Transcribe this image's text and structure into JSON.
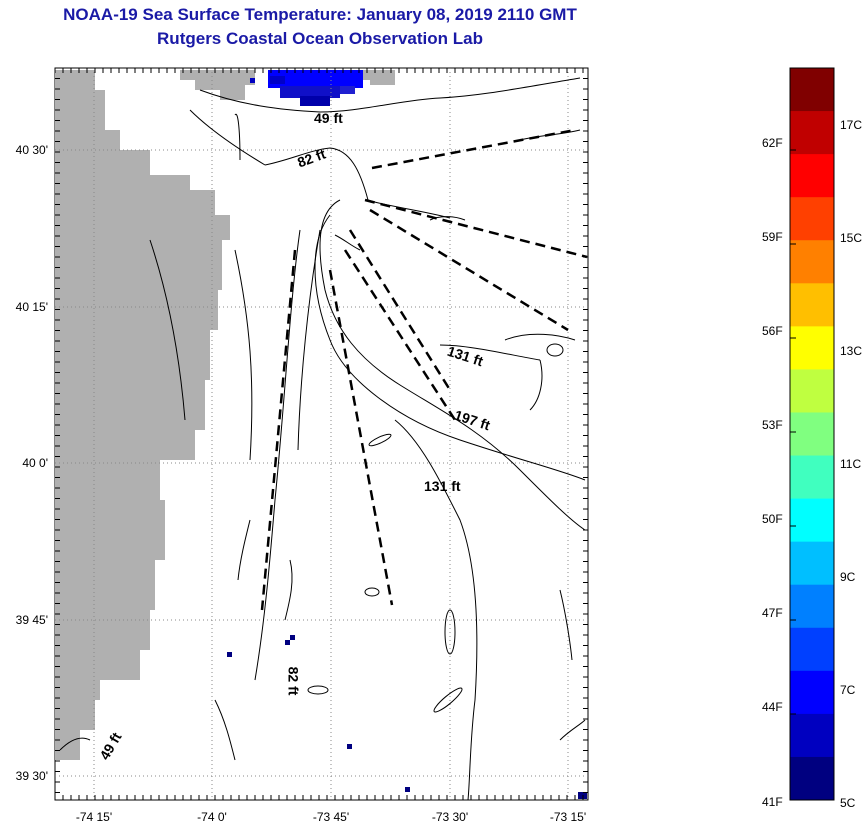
{
  "title": "NOAA-19 Sea Surface Temperature:  January 08, 2019 2110 GMT",
  "subtitle": "Rutgers Coastal Ocean Observation Lab",
  "lat_labels": [
    "40 30'",
    "40 15'",
    "40 0'",
    "39 45'",
    "39 30'"
  ],
  "lon_labels": [
    "-74 15'",
    "-74 0'",
    "-73 45'",
    "-73 30'",
    "-73 15'"
  ],
  "depth_labels": [
    "49 ft",
    "82 ft",
    "131 ft",
    "197 ft",
    "131 ft",
    "82 ft",
    "49 ft"
  ],
  "colorbar": {
    "f_labels": [
      "62F",
      "59F",
      "56F",
      "53F",
      "50F",
      "47F",
      "44F",
      "41F"
    ],
    "c_labels": [
      "17C",
      "15C",
      "13C",
      "11C",
      "9C",
      "7C",
      "5C"
    ],
    "colors": [
      "#800000",
      "#c00000",
      "#ff0000",
      "#ff4000",
      "#ff8000",
      "#ffbf00",
      "#ffff00",
      "#bfff40",
      "#80ff80",
      "#40ffbf",
      "#00ffff",
      "#00bfff",
      "#0080ff",
      "#0040ff",
      "#0000ff",
      "#0000c0",
      "#000080"
    ]
  },
  "colors": {
    "title": "#1a1aa6",
    "land": "#b0b0b0",
    "cold_sst": "#0000ff"
  }
}
